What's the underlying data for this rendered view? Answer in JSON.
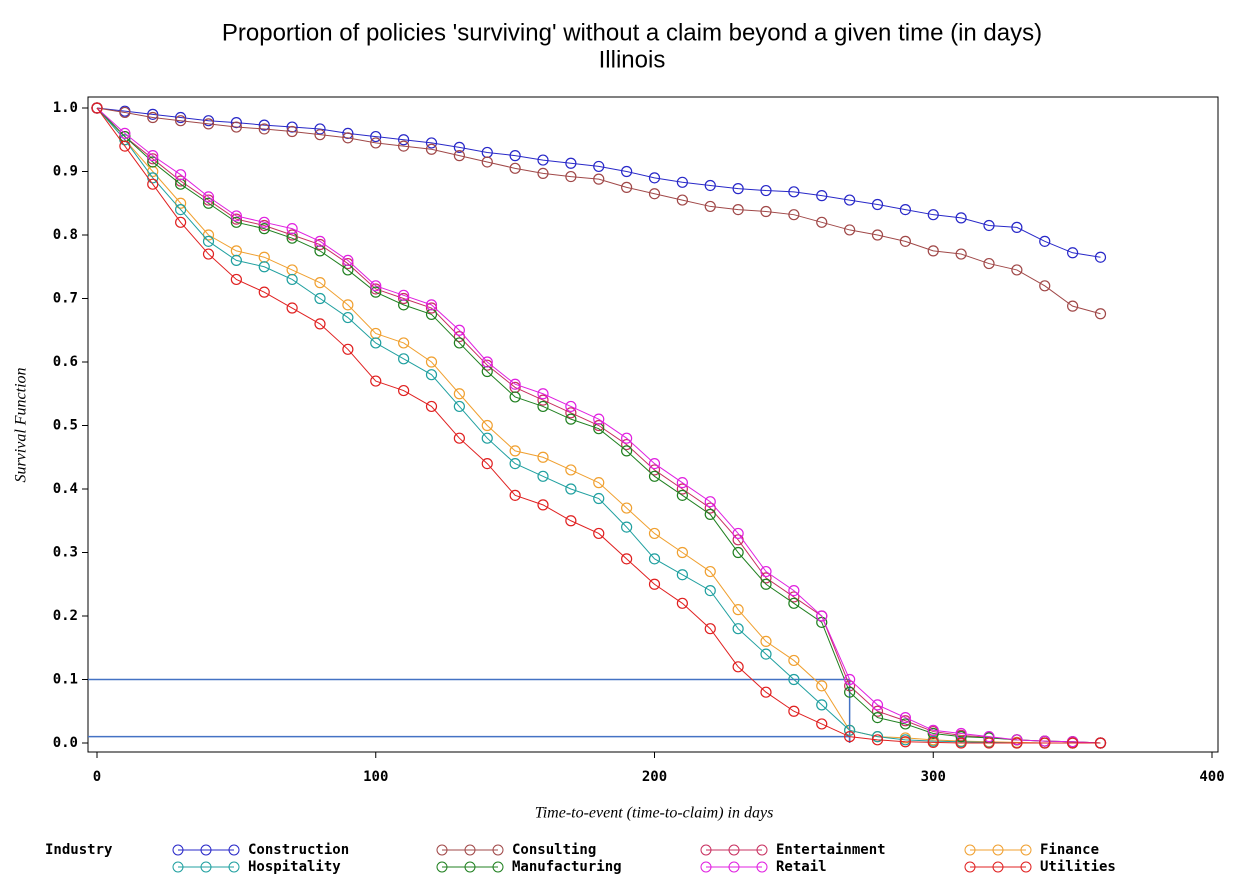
{
  "chart_data": {
    "type": "line",
    "title": "Proportion of policies 'surviving' without a claim beyond a given time (in days)",
    "subtitle": "Illinois",
    "x_label": "Time-to-event (time-to-claim) in days",
    "y_label": "Survival Function",
    "legend_title": "Industry",
    "x": [
      0,
      10,
      20,
      30,
      40,
      50,
      60,
      70,
      80,
      90,
      100,
      110,
      120,
      130,
      140,
      150,
      160,
      170,
      180,
      190,
      200,
      210,
      220,
      230,
      240,
      250,
      260,
      270,
      280,
      290,
      300,
      310,
      320,
      330,
      340,
      350,
      360
    ],
    "series": [
      {
        "name": "Construction",
        "color": "#2828c8",
        "values": [
          1.0,
          0.995,
          0.99,
          0.985,
          0.98,
          0.977,
          0.973,
          0.97,
          0.967,
          0.96,
          0.955,
          0.95,
          0.945,
          0.938,
          0.93,
          0.925,
          0.918,
          0.913,
          0.908,
          0.9,
          0.89,
          0.883,
          0.878,
          0.873,
          0.87,
          0.868,
          0.862,
          0.855,
          0.848,
          0.84,
          0.832,
          0.827,
          0.815,
          0.812,
          0.79,
          0.772,
          0.765
        ]
      },
      {
        "name": "Consulting",
        "color": "#a04848",
        "values": [
          1.0,
          0.993,
          0.985,
          0.98,
          0.975,
          0.97,
          0.967,
          0.963,
          0.958,
          0.953,
          0.945,
          0.94,
          0.935,
          0.925,
          0.915,
          0.905,
          0.897,
          0.892,
          0.888,
          0.875,
          0.865,
          0.855,
          0.845,
          0.84,
          0.837,
          0.832,
          0.82,
          0.808,
          0.8,
          0.79,
          0.775,
          0.77,
          0.755,
          0.745,
          0.72,
          0.688,
          0.676
        ]
      },
      {
        "name": "Entertainment",
        "color": "#c83060",
        "values": [
          1.0,
          0.955,
          0.92,
          0.885,
          0.855,
          0.825,
          0.815,
          0.8,
          0.785,
          0.755,
          0.715,
          0.7,
          0.685,
          0.64,
          0.595,
          0.56,
          0.54,
          0.52,
          0.5,
          0.47,
          0.43,
          0.4,
          0.37,
          0.32,
          0.26,
          0.23,
          0.2,
          0.09,
          0.05,
          0.035,
          0.018,
          0.012,
          0.009,
          0.005,
          0.003,
          0.002,
          0.0
        ]
      },
      {
        "name": "Finance",
        "color": "#f0a030",
        "values": [
          1.0,
          0.95,
          0.9,
          0.85,
          0.8,
          0.775,
          0.765,
          0.745,
          0.725,
          0.69,
          0.645,
          0.63,
          0.6,
          0.55,
          0.5,
          0.46,
          0.45,
          0.43,
          0.41,
          0.37,
          0.33,
          0.3,
          0.27,
          0.21,
          0.16,
          0.13,
          0.09,
          0.02,
          0.01,
          0.008,
          0.005,
          0.003,
          0.002,
          0.001,
          0.0,
          0.0,
          0.0
        ]
      },
      {
        "name": "Hospitality",
        "color": "#20a0a0",
        "values": [
          1.0,
          0.95,
          0.89,
          0.84,
          0.79,
          0.76,
          0.75,
          0.73,
          0.7,
          0.67,
          0.63,
          0.605,
          0.58,
          0.53,
          0.48,
          0.44,
          0.42,
          0.4,
          0.385,
          0.34,
          0.29,
          0.265,
          0.24,
          0.18,
          0.14,
          0.1,
          0.06,
          0.02,
          0.01,
          0.005,
          0.003,
          0.002,
          0.001,
          0.0,
          0.0,
          0.0,
          0.0
        ]
      },
      {
        "name": "Manufacturing",
        "color": "#208020",
        "values": [
          1.0,
          0.955,
          0.915,
          0.88,
          0.85,
          0.82,
          0.81,
          0.795,
          0.775,
          0.745,
          0.71,
          0.69,
          0.675,
          0.63,
          0.585,
          0.545,
          0.53,
          0.51,
          0.495,
          0.46,
          0.42,
          0.39,
          0.36,
          0.3,
          0.25,
          0.22,
          0.19,
          0.08,
          0.04,
          0.03,
          0.015,
          0.01,
          0.008,
          0.005,
          0.003,
          0.002,
          0.0
        ]
      },
      {
        "name": "Retail",
        "color": "#e020e0",
        "values": [
          1.0,
          0.96,
          0.925,
          0.895,
          0.86,
          0.83,
          0.82,
          0.81,
          0.79,
          0.76,
          0.72,
          0.705,
          0.69,
          0.65,
          0.6,
          0.565,
          0.55,
          0.53,
          0.51,
          0.48,
          0.44,
          0.41,
          0.38,
          0.33,
          0.27,
          0.24,
          0.2,
          0.1,
          0.06,
          0.04,
          0.02,
          0.015,
          0.01,
          0.005,
          0.003,
          0.002,
          0.0
        ]
      },
      {
        "name": "Utilities",
        "color": "#e02020",
        "values": [
          1.0,
          0.94,
          0.88,
          0.82,
          0.77,
          0.73,
          0.71,
          0.685,
          0.66,
          0.62,
          0.57,
          0.555,
          0.53,
          0.48,
          0.44,
          0.39,
          0.375,
          0.35,
          0.33,
          0.29,
          0.25,
          0.22,
          0.18,
          0.12,
          0.08,
          0.05,
          0.03,
          0.01,
          0.005,
          0.002,
          0.001,
          0.0,
          0.0,
          0.0,
          0.0,
          0.0,
          0.0
        ]
      }
    ],
    "reference_lines": [
      {
        "y": 0.1,
        "x": 270
      },
      {
        "y": 0.01,
        "x": 270
      }
    ],
    "reference_color": "#4472c4",
    "xlim": [
      0,
      400
    ],
    "xticks": [
      0,
      100,
      200,
      300,
      400
    ],
    "ylim": [
      0,
      1
    ],
    "yticks": [
      {
        "value": 0,
        "label": "0.0"
      },
      {
        "value": 0.1,
        "label": "0.1"
      },
      {
        "value": 0.2,
        "label": "0.2"
      },
      {
        "value": 0.3,
        "label": "0.3"
      },
      {
        "value": 0.4,
        "label": "0.4"
      },
      {
        "value": 0.5,
        "label": "0.5"
      },
      {
        "value": 0.6,
        "label": "0.6"
      },
      {
        "value": 0.7,
        "label": "0.7"
      },
      {
        "value": 0.8,
        "label": "0.8"
      },
      {
        "value": 0.9,
        "label": "0.9"
      },
      {
        "value": 1,
        "label": "1.0"
      }
    ]
  }
}
